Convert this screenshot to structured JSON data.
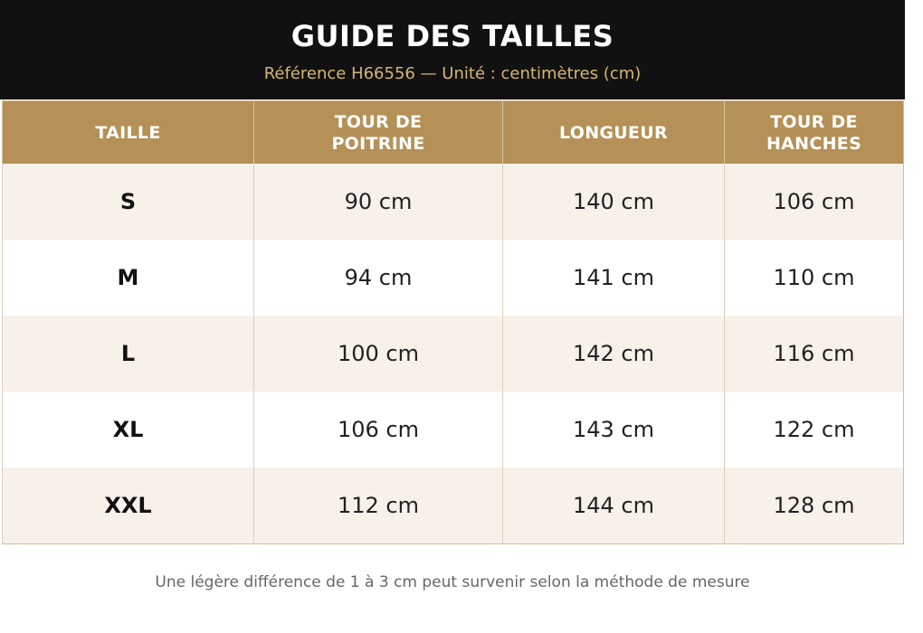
{
  "header": {
    "title": "GUIDE DES TAILLES",
    "subtitle": "Référence H66556 — Unité : centimètres (cm)"
  },
  "table": {
    "columns": [
      "TAILLE",
      "TOUR DE POITRINE",
      "LONGUEUR",
      "TOUR DE HANCHES"
    ],
    "rows": [
      [
        "S",
        "90 cm",
        "140 cm",
        "106 cm"
      ],
      [
        "M",
        "94 cm",
        "141 cm",
        "110 cm"
      ],
      [
        "L",
        "100 cm",
        "142 cm",
        "116 cm"
      ],
      [
        "XL",
        "106 cm",
        "143 cm",
        "122 cm"
      ],
      [
        "XXL",
        "112 cm",
        "144 cm",
        "128 cm"
      ]
    ]
  },
  "footer": {
    "note": "Une légère différence de 1 à 3 cm peut survenir selon la méthode de mesure"
  }
}
